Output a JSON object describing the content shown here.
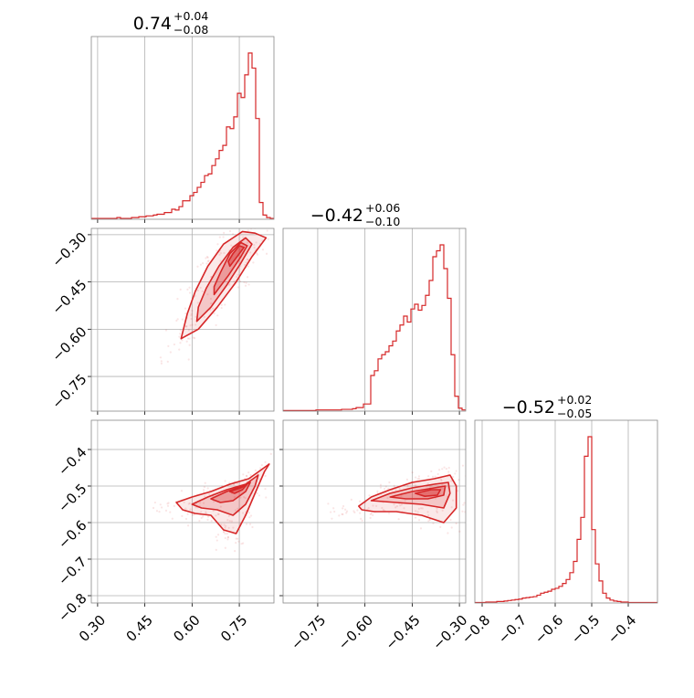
{
  "chart_data": {
    "type": "corner",
    "color": "#d62728",
    "fill_color": "#f7c6c7",
    "grid": true,
    "parameters": [
      {
        "title": "0.74",
        "upper": "+0.04",
        "lower": "−0.08",
        "axis_range": [
          0.28,
          0.86
        ],
        "ticks": [
          0.3,
          0.45,
          0.6,
          0.75
        ],
        "tick_labels": [
          "0.30",
          "0.45",
          "0.60",
          "0.75"
        ]
      },
      {
        "title": "−0.42",
        "upper": "+0.06",
        "lower": "−0.10",
        "axis_range": [
          -0.86,
          -0.28
        ],
        "ticks": [
          -0.75,
          -0.6,
          -0.45,
          -0.3
        ],
        "tick_labels": [
          "−0.75",
          "−0.60",
          "−0.45",
          "−0.30"
        ]
      },
      {
        "title": "−0.52",
        "upper": "+0.02",
        "lower": "−0.05",
        "axis_range": [
          -0.82,
          -0.32
        ],
        "ticks": [
          -0.8,
          -0.7,
          -0.6,
          -0.5,
          -0.4
        ],
        "tick_labels": [
          "−0.8",
          "−0.7",
          "−0.6",
          "−0.5",
          "−0.4"
        ]
      }
    ],
    "histograms": [
      {
        "param": 0,
        "edges_from": 0.28,
        "edges_to": 0.86,
        "bins": 50,
        "counts": [
          1,
          1,
          1,
          1,
          1,
          1,
          1,
          2,
          1,
          1,
          1,
          2,
          2,
          3,
          3,
          4,
          4,
          5,
          6,
          6,
          8,
          8,
          12,
          11,
          15,
          22,
          22,
          28,
          32,
          38,
          44,
          52,
          54,
          64,
          72,
          82,
          88,
          110,
          108,
          122,
          150,
          145,
          172,
          198,
          180,
          120,
          20,
          5,
          2,
          1
        ]
      },
      {
        "param": 1,
        "edges_from": -0.86,
        "edges_to": -0.28,
        "bins": 50,
        "counts": [
          1,
          1,
          1,
          1,
          1,
          1,
          1,
          1,
          1,
          2,
          2,
          2,
          2,
          2,
          2,
          2,
          3,
          3,
          3,
          4,
          6,
          6,
          12,
          12,
          60,
          68,
          88,
          95,
          100,
          110,
          118,
          135,
          145,
          160,
          150,
          172,
          180,
          170,
          178,
          195,
          220,
          260,
          270,
          280,
          240,
          190,
          95,
          25,
          5,
          2
        ]
      },
      {
        "param": 2,
        "edges_from": -0.82,
        "edges_to": -0.32,
        "bins": 50,
        "counts": [
          1,
          1,
          1,
          2,
          2,
          2,
          3,
          3,
          4,
          5,
          6,
          7,
          8,
          10,
          11,
          12,
          13,
          16,
          20,
          22,
          24,
          28,
          30,
          34,
          40,
          48,
          62,
          85,
          130,
          175,
          300,
          340,
          150,
          80,
          45,
          20,
          10,
          6,
          4,
          3,
          2,
          2,
          1,
          1,
          1,
          1,
          1,
          1,
          1,
          1
        ]
      }
    ],
    "contours": [
      {
        "x_param": 0,
        "y_param": 1,
        "levels": [
          [
            [
              0.565,
              -0.63
            ],
            [
              0.62,
              -0.6
            ],
            [
              0.68,
              -0.53
            ],
            [
              0.74,
              -0.45
            ],
            [
              0.79,
              -0.37
            ],
            [
              0.835,
              -0.31
            ],
            [
              0.8,
              -0.295
            ],
            [
              0.76,
              -0.29
            ],
            [
              0.7,
              -0.33
            ],
            [
              0.65,
              -0.4
            ],
            [
              0.61,
              -0.48
            ],
            [
              0.585,
              -0.55
            ]
          ],
          [
            [
              0.615,
              -0.575
            ],
            [
              0.66,
              -0.53
            ],
            [
              0.71,
              -0.46
            ],
            [
              0.755,
              -0.39
            ],
            [
              0.79,
              -0.33
            ],
            [
              0.77,
              -0.31
            ],
            [
              0.73,
              -0.34
            ],
            [
              0.685,
              -0.4
            ],
            [
              0.645,
              -0.47
            ],
            [
              0.62,
              -0.53
            ]
          ],
          [
            [
              0.67,
              -0.49
            ],
            [
              0.715,
              -0.43
            ],
            [
              0.755,
              -0.37
            ],
            [
              0.775,
              -0.335
            ],
            [
              0.755,
              -0.325
            ],
            [
              0.72,
              -0.36
            ],
            [
              0.69,
              -0.42
            ],
            [
              0.67,
              -0.465
            ]
          ],
          [
            [
              0.72,
              -0.4
            ],
            [
              0.75,
              -0.36
            ],
            [
              0.765,
              -0.34
            ],
            [
              0.75,
              -0.335
            ],
            [
              0.73,
              -0.36
            ],
            [
              0.715,
              -0.385
            ]
          ]
        ]
      },
      {
        "x_param": 0,
        "y_param": 2,
        "levels": [
          [
            [
              0.55,
              -0.545
            ],
            [
              0.6,
              -0.53
            ],
            [
              0.66,
              -0.515
            ],
            [
              0.72,
              -0.495
            ],
            [
              0.78,
              -0.48
            ],
            [
              0.845,
              -0.44
            ],
            [
              0.83,
              -0.46
            ],
            [
              0.8,
              -0.52
            ],
            [
              0.77,
              -0.58
            ],
            [
              0.74,
              -0.63
            ],
            [
              0.7,
              -0.62
            ],
            [
              0.66,
              -0.58
            ],
            [
              0.61,
              -0.575
            ],
            [
              0.57,
              -0.565
            ]
          ],
          [
            [
              0.6,
              -0.55
            ],
            [
              0.65,
              -0.53
            ],
            [
              0.71,
              -0.51
            ],
            [
              0.77,
              -0.495
            ],
            [
              0.81,
              -0.47
            ],
            [
              0.8,
              -0.5
            ],
            [
              0.77,
              -0.55
            ],
            [
              0.73,
              -0.58
            ],
            [
              0.68,
              -0.565
            ],
            [
              0.63,
              -0.56
            ]
          ],
          [
            [
              0.66,
              -0.535
            ],
            [
              0.71,
              -0.515
            ],
            [
              0.76,
              -0.5
            ],
            [
              0.785,
              -0.49
            ],
            [
              0.77,
              -0.515
            ],
            [
              0.73,
              -0.54
            ],
            [
              0.69,
              -0.545
            ]
          ],
          [
            [
              0.72,
              -0.515
            ],
            [
              0.755,
              -0.505
            ],
            [
              0.775,
              -0.495
            ],
            [
              0.76,
              -0.51
            ],
            [
              0.735,
              -0.52
            ]
          ]
        ]
      },
      {
        "x_param": 1,
        "y_param": 2,
        "levels": [
          [
            [
              -0.62,
              -0.555
            ],
            [
              -0.58,
              -0.53
            ],
            [
              -0.52,
              -0.51
            ],
            [
              -0.45,
              -0.49
            ],
            [
              -0.38,
              -0.48
            ],
            [
              -0.33,
              -0.47
            ],
            [
              -0.31,
              -0.5
            ],
            [
              -0.31,
              -0.56
            ],
            [
              -0.35,
              -0.6
            ],
            [
              -0.42,
              -0.58
            ],
            [
              -0.5,
              -0.57
            ],
            [
              -0.57,
              -0.57
            ],
            [
              -0.61,
              -0.565
            ]
          ],
          [
            [
              -0.58,
              -0.54
            ],
            [
              -0.52,
              -0.52
            ],
            [
              -0.45,
              -0.505
            ],
            [
              -0.38,
              -0.495
            ],
            [
              -0.335,
              -0.49
            ],
            [
              -0.33,
              -0.52
            ],
            [
              -0.35,
              -0.56
            ],
            [
              -0.42,
              -0.55
            ],
            [
              -0.5,
              -0.545
            ]
          ],
          [
            [
              -0.52,
              -0.53
            ],
            [
              -0.45,
              -0.515
            ],
            [
              -0.38,
              -0.505
            ],
            [
              -0.345,
              -0.5
            ],
            [
              -0.35,
              -0.525
            ],
            [
              -0.4,
              -0.535
            ],
            [
              -0.47,
              -0.535
            ]
          ],
          [
            [
              -0.44,
              -0.52
            ],
            [
              -0.39,
              -0.51
            ],
            [
              -0.36,
              -0.51
            ],
            [
              -0.37,
              -0.525
            ],
            [
              -0.41,
              -0.528
            ]
          ]
        ]
      }
    ]
  }
}
